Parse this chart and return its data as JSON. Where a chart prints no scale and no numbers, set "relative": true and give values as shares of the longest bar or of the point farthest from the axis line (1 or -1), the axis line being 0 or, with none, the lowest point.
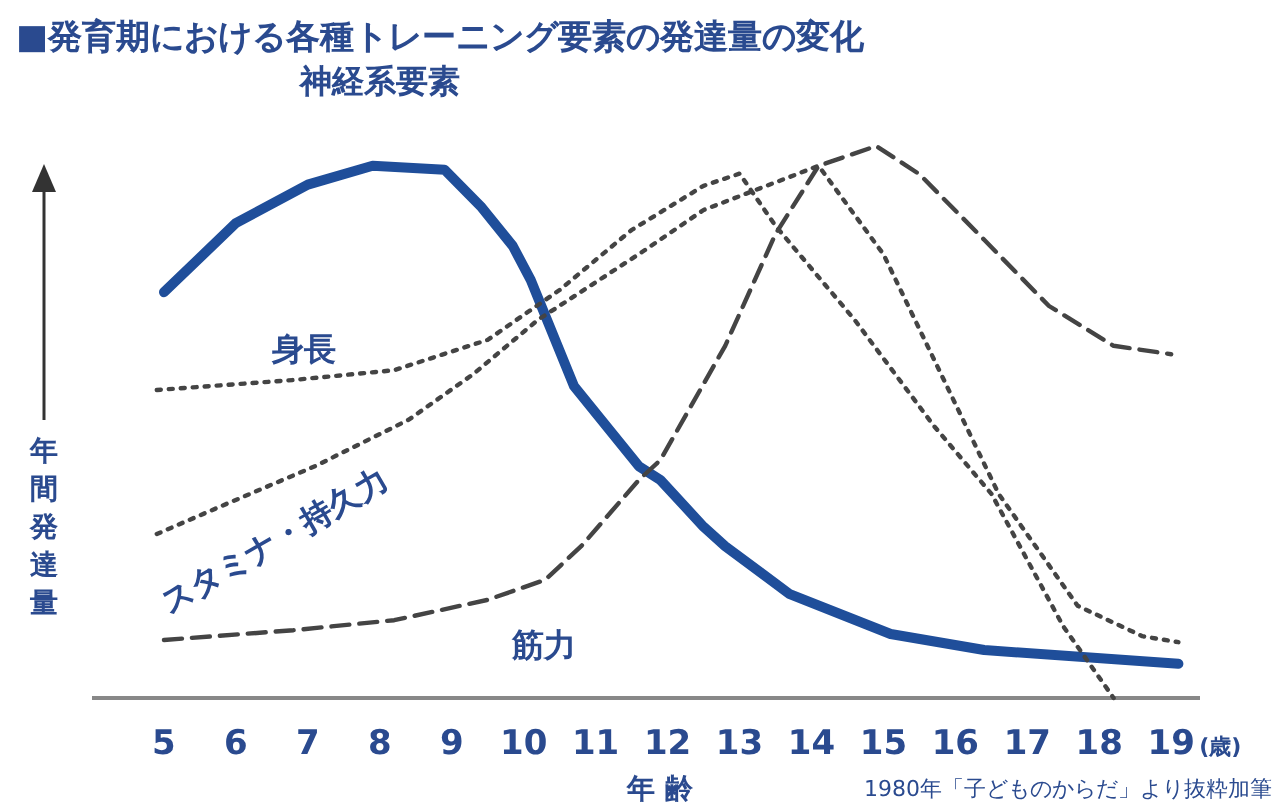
{
  "chart_data": {
    "type": "line",
    "title": "■発育期における各種トレーニング要素の発達量の変化",
    "xlabel": "年 齢",
    "ylabel": "年間発達量",
    "relative": true,
    "xlim": [
      4,
      19.4
    ],
    "xticks": [
      5,
      6,
      7,
      8,
      9,
      10,
      11,
      12,
      13,
      14,
      15,
      16,
      17,
      18,
      19
    ],
    "annotations": [
      "(歳)",
      "1980年「子どものからだ」より抜粋加筆"
    ],
    "series": [
      {
        "name": "神経系要素",
        "color": "#1f4e9a",
        "line_style": "solid",
        "x": [
          5,
          6,
          7,
          7.9,
          8.9,
          9.4,
          9.85,
          10.1,
          10.7,
          11.6,
          11.9,
          12.5,
          12.8,
          13.7,
          15.1,
          16.4,
          19.1
        ],
        "values": [
          0.735,
          0.86,
          0.93,
          0.964,
          0.957,
          0.891,
          0.819,
          0.757,
          0.565,
          0.42,
          0.395,
          0.31,
          0.275,
          0.188,
          0.116,
          0.087,
          0.062
        ]
      },
      {
        "name": "身長",
        "color": "#444444",
        "line_style": "dotted",
        "x": [
          4.9,
          6.8,
          8.2,
          9.5,
          10.5,
          11.5,
          12.5,
          13,
          13.5,
          14.6,
          15.7,
          16.5,
          17.5,
          18.2
        ],
        "values": [
          0.558,
          0.576,
          0.594,
          0.649,
          0.739,
          0.848,
          0.928,
          0.95,
          0.855,
          0.685,
          0.493,
          0.37,
          0.13,
          0.0
        ]
      },
      {
        "name": "スタミナ・持久力",
        "color": "#444444",
        "line_style": "dotted",
        "x": [
          4.9,
          5.8,
          7.1,
          8.4,
          9.3,
          10.2,
          11.6,
          12.5,
          14.1,
          15,
          15.8,
          16.6,
          17.7,
          18.6,
          19.1
        ],
        "values": [
          0.297,
          0.348,
          0.42,
          0.504,
          0.587,
          0.685,
          0.804,
          0.884,
          0.964,
          0.804,
          0.587,
          0.37,
          0.167,
          0.112,
          0.101
        ]
      },
      {
        "name": "筋力",
        "color": "#444444",
        "line_style": "dashed",
        "x": [
          5,
          6.8,
          8.2,
          9.5,
          10.3,
          10.8,
          11.6,
          11.9,
          12.8,
          13.5,
          14.1,
          14.9,
          15.5,
          16.4,
          17.3,
          18.2,
          19
        ],
        "values": [
          0.105,
          0.123,
          0.141,
          0.178,
          0.214,
          0.275,
          0.395,
          0.431,
          0.638,
          0.841,
          0.964,
          1.0,
          0.949,
          0.83,
          0.71,
          0.638,
          0.623
        ]
      }
    ]
  }
}
